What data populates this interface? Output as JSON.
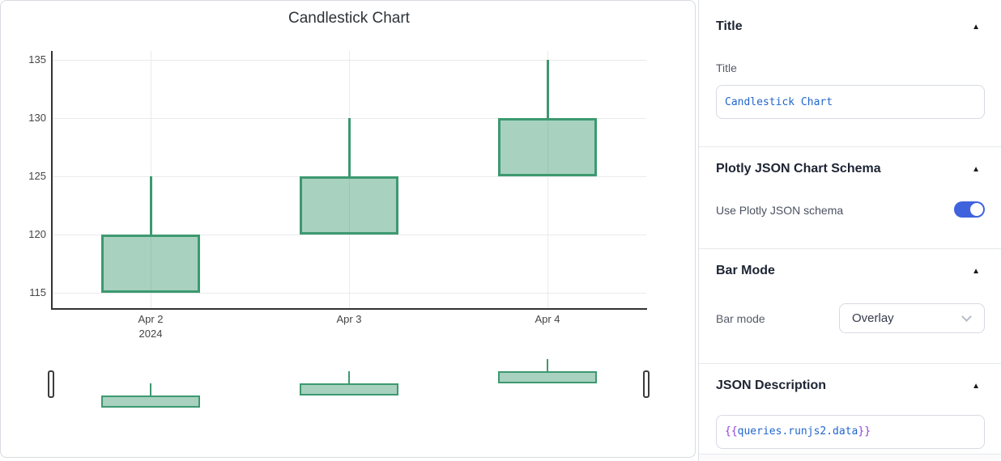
{
  "chart": {
    "title": "Candlestick Chart",
    "y_ticks": [
      135,
      130,
      125,
      120,
      115
    ],
    "x_tick_labels": [
      "Apr 2",
      "Apr 3",
      "Apr 4"
    ],
    "x_first_tick_year": "2024",
    "increasing_line_color": "#3D9970",
    "increasing_fill_color": "rgba(61,153,112,0.45)"
  },
  "chart_data": {
    "type": "candlestick",
    "x": [
      "Apr 2, 2024",
      "Apr 3, 2024",
      "Apr 4, 2024"
    ],
    "open": [
      115,
      120,
      125
    ],
    "high": [
      125,
      130,
      135
    ],
    "low": [
      115,
      120,
      125
    ],
    "close": [
      120,
      125,
      130
    ],
    "title": "Candlestick Chart",
    "ylim": [
      113.6,
      135.8
    ],
    "grid": true,
    "rangeslider": true,
    "legend": "none"
  },
  "panel": {
    "collapse_icon": "▲",
    "sections": {
      "title": {
        "header": "Title",
        "label": "Title",
        "value": "Candlestick Chart"
      },
      "plotly_schema": {
        "header": "Plotly JSON Chart Schema",
        "toggle_label": "Use Plotly JSON schema",
        "toggle_on": true
      },
      "bar_mode": {
        "header": "Bar Mode",
        "label": "Bar mode",
        "value": "Overlay"
      },
      "json_description": {
        "header": "JSON Description",
        "value_open": "{{",
        "value_expr": "queries.runjs2.data",
        "value_close": "}}"
      }
    },
    "accent_color": "#3e63dd"
  }
}
